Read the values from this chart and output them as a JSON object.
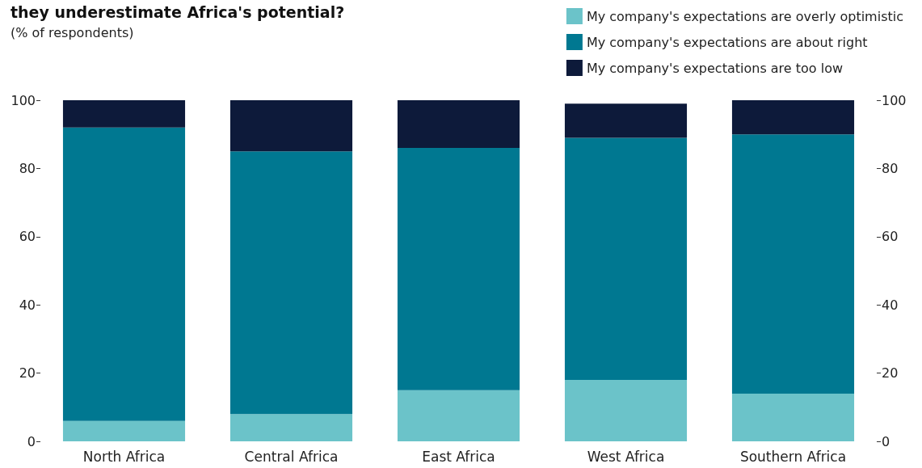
{
  "chart_data": {
    "type": "bar",
    "title": "they underestimate Africa's potential?",
    "subtitle": "(% of respondents)",
    "categories": [
      "North Africa",
      "Central Africa",
      "East Africa",
      "West Africa",
      "Southern Africa"
    ],
    "stacked": true,
    "series": [
      {
        "name": "My company's expectations are overly optimistic",
        "color": "#6bc3c9",
        "values": [
          6,
          8,
          15,
          18,
          14
        ]
      },
      {
        "name": "My company's expectations are about right",
        "color": "#007891",
        "values": [
          86,
          77,
          71,
          71,
          76
        ]
      },
      {
        "name": "My company's expectations are too low",
        "color": "#0d1a3a",
        "values": [
          8,
          15,
          14,
          10,
          10
        ]
      }
    ],
    "ylim": [
      0,
      100
    ],
    "yticks": [
      0,
      20,
      40,
      60,
      80,
      100
    ],
    "y2lim": [
      0,
      100
    ],
    "y2ticks": [
      0,
      20,
      40,
      60,
      80,
      100
    ],
    "grid": false,
    "legend": "top right"
  }
}
